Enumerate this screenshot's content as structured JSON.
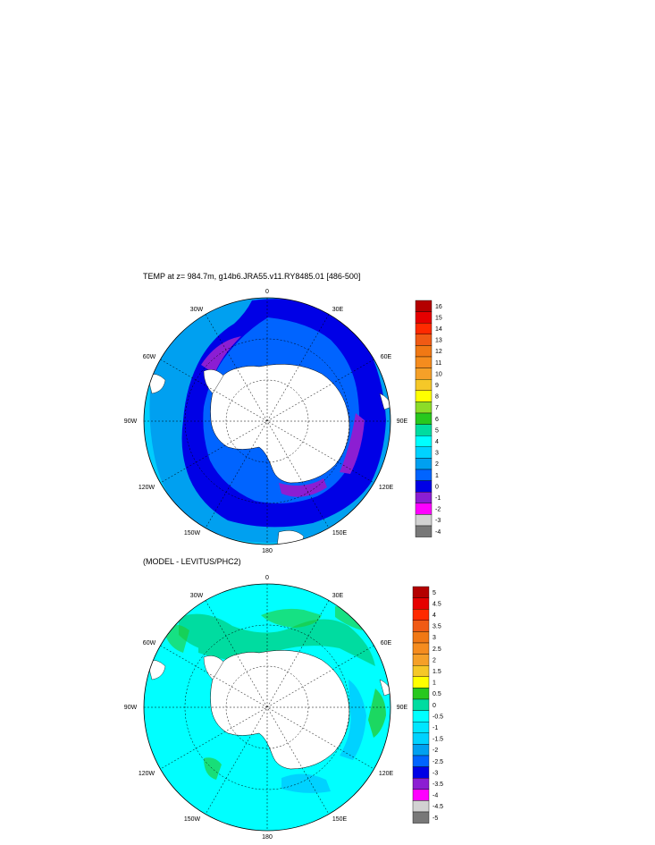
{
  "panel1": {
    "title": "TEMP at z= 984.7m, g14b6.JRA55.v11.RY8485.01 [486-500]",
    "lon_labels": {
      "n": "0",
      "e30": "30E",
      "e60": "60E",
      "e90": "90E",
      "e120": "120E",
      "e150": "150E",
      "s": "180",
      "w150": "150W",
      "w120": "120W",
      "w90": "90W",
      "w60": "60W",
      "w30": "30W"
    },
    "colorbar": {
      "labels": [
        "16",
        "15",
        "14",
        "13",
        "12",
        "11",
        "10",
        "9",
        "8",
        "7",
        "6",
        "5",
        "4",
        "3",
        "2",
        "1",
        "0",
        "-1",
        "-2",
        "-3",
        "-4"
      ],
      "colors": [
        "#b40000",
        "#e60000",
        "#ff2a00",
        "#f05a14",
        "#f07814",
        "#f58c1e",
        "#f5a028",
        "#f5c828",
        "#ffff00",
        "#8cdc28",
        "#28c81e",
        "#00dca0",
        "#00ffff",
        "#00d2ff",
        "#00a0f0",
        "#0064ff",
        "#0000e6",
        "#8c1ed2",
        "#ff00ff",
        "#d2d2d2",
        "#787878"
      ]
    }
  },
  "panel2": {
    "title": "(MODEL - LEVITUS/PHC2)",
    "lon_labels": {
      "n": "0",
      "e30": "30E",
      "e60": "60E",
      "e90": "90E",
      "e120": "120E",
      "e150": "150E",
      "s": "180",
      "w150": "150W",
      "w120": "120W",
      "w90": "90W",
      "w60": "60W",
      "w30": "30W"
    },
    "colorbar": {
      "labels": [
        "5",
        "4.5",
        "4",
        "3.5",
        "3",
        "2.5",
        "2",
        "1.5",
        "1",
        "0.5",
        "0",
        "-0.5",
        "-1",
        "-1.5",
        "-2",
        "-2.5",
        "-3",
        "-3.5",
        "-4",
        "-4.5",
        "-5"
      ],
      "colors": [
        "#b40000",
        "#e60000",
        "#ff2a00",
        "#f05a14",
        "#f07814",
        "#f58c1e",
        "#f5a028",
        "#f5c828",
        "#ffff00",
        "#28c81e",
        "#00dca0",
        "#00ffff",
        "#00e6ff",
        "#00d2ff",
        "#00a0f0",
        "#0064ff",
        "#0000e6",
        "#8c1ed2",
        "#ff00ff",
        "#d2d2d2",
        "#787878"
      ]
    }
  }
}
